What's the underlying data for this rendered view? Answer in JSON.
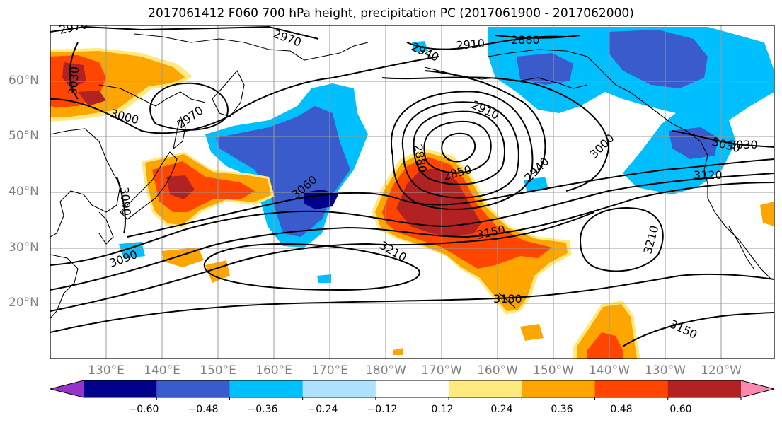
{
  "title": "2017061412 F060 700 hPa height, precipitation PC (2017061900 - 2017062000)",
  "map": {
    "lat_labels": [
      "60°N",
      "50°N",
      "40°N",
      "30°N",
      "20°N"
    ],
    "lon_labels": [
      "130°E",
      "140°E",
      "150°E",
      "160°E",
      "170°E",
      "180°W",
      "170°W",
      "160°W",
      "150°W",
      "140°W",
      "130°W",
      "120°W"
    ],
    "contour_labels": [
      "2970",
      "2970",
      "2940",
      "2910",
      "2880",
      "3030",
      "3000",
      "2970",
      "2910",
      "2880",
      "2850",
      "2940",
      "3000",
      "3030",
      "3030",
      "3120",
      "3060",
      "3090",
      "3090",
      "3150",
      "3210",
      "3210",
      "3180",
      "3150"
    ]
  },
  "colorbar": {
    "colors": [
      "#9932cc",
      "#00008b",
      "#3a5bcc",
      "#00bfff",
      "#b0e2ff",
      "#ffffff",
      "#ffea80",
      "#ffa500",
      "#ff4500",
      "#b22222",
      "#ff88b0"
    ],
    "tick_labels": [
      "−0.60",
      "−0.48",
      "−0.36",
      "−0.24",
      "−0.12",
      "0.12",
      "0.24",
      "0.36",
      "0.48",
      "0.60"
    ]
  }
}
